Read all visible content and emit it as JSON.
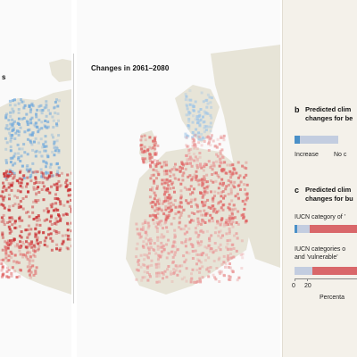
{
  "left_map": {
    "title": "s"
  },
  "right_map": {
    "title": "Changes in 2061–2080"
  },
  "panel_b": {
    "letter": "b",
    "title_line1": "Predicted clim",
    "title_line2": "changes for be",
    "labels": [
      "Increase",
      "No c"
    ]
  },
  "panel_c": {
    "letter": "c",
    "title_line1": "Predicted clim",
    "title_line2": "changes for bu",
    "row1_label": "IUCN category of '",
    "row2_label_line1": "IUCN categories o",
    "row2_label_line2": "and 'vulnerable'",
    "axis_label": "Percenta"
  },
  "colors": {
    "increase": "#4a90c8",
    "no_change": "#c3cde0",
    "decrease": "#d9676a",
    "land": "#e7e4d7",
    "sea": "#fafafa"
  },
  "chart_data": [
    {
      "type": "bar",
      "title": "Predicted clim… changes for be…",
      "orientation": "horizontal",
      "categories": [
        ""
      ],
      "series": [
        {
          "name": "Increase",
          "values": [
            8
          ]
        },
        {
          "name": "No c",
          "values": [
            62
          ]
        }
      ],
      "xlim": [
        0,
        100
      ]
    },
    {
      "type": "bar",
      "title": "Predicted clim… changes for bu…",
      "orientation": "horizontal",
      "categories": [
        "IUCN category of '",
        "IUCN categories o… and 'vulnerable'"
      ],
      "series": [
        {
          "values": [
            4,
            0
          ]
        },
        {
          "values": [
            21,
            28
          ]
        },
        {
          "values": [
            75,
            72
          ]
        }
      ],
      "xticks": [
        0,
        20
      ],
      "xlabel": "Percenta",
      "xlim": [
        0,
        100
      ]
    }
  ]
}
